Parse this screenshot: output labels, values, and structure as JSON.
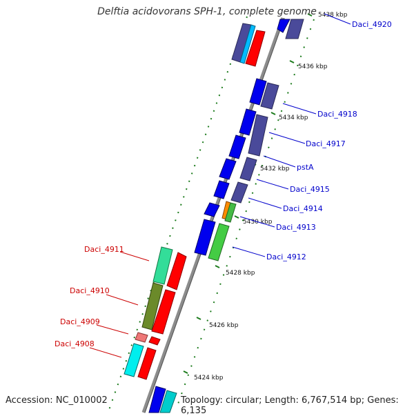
{
  "title": "Delftia acidovorans SPH-1, complete genome",
  "accession": "Accession: NC_010002",
  "topology": "Topology: circular; Length: 6,767,514 bp; Genes: 6,135",
  "colors": {
    "backbone": "#8c8c8c",
    "tick_major": "#1a7a1a",
    "label_forward": "#0000cc",
    "label_reverse": "#cc0000"
  },
  "kbp_ticks": [
    {
      "label": "5424 kbp"
    },
    {
      "label": "5426 kbp"
    },
    {
      "label": "5428 kbp"
    },
    {
      "label": "5430 kbp"
    },
    {
      "label": "5432 kbp"
    },
    {
      "label": "5434 kbp"
    },
    {
      "label": "5436 kbp"
    },
    {
      "label": "5438 kbp"
    }
  ],
  "genes_forward": [
    {
      "label": "Daci_4920"
    },
    {
      "label": "Daci_4918"
    },
    {
      "label": "Daci_4917"
    },
    {
      "label": "pstA"
    },
    {
      "label": "Daci_4915"
    },
    {
      "label": "Daci_4914"
    },
    {
      "label": "Daci_4913"
    },
    {
      "label": "Daci_4912"
    }
  ],
  "genes_reverse": [
    {
      "label": "Daci_4911"
    },
    {
      "label": "Daci_4910"
    },
    {
      "label": "Daci_4909"
    },
    {
      "label": "Daci_4908"
    }
  ]
}
